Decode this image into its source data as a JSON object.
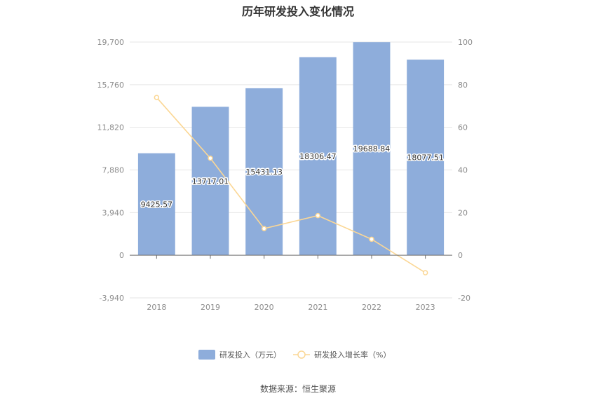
{
  "chart_data": {
    "type": "bar",
    "title": "历年研发投入变化情况",
    "categories": [
      "2018",
      "2019",
      "2020",
      "2021",
      "2022",
      "2023"
    ],
    "series": [
      {
        "name": "研发投入（万元）",
        "type": "bar",
        "axis": "left",
        "color": "#8eaddb",
        "values": [
          9425.57,
          13717.01,
          15431.13,
          18306.47,
          19688.84,
          18077.51
        ],
        "labels": [
          "9425.57",
          "13717.01",
          "15431.13",
          "18306.47",
          "19688.84",
          "18077.51"
        ]
      },
      {
        "name": "研发投入增长率（%）",
        "type": "line",
        "axis": "right",
        "color": "#fbd795",
        "values": [
          74.0,
          45.5,
          12.5,
          18.6,
          7.5,
          -8.2
        ]
      }
    ],
    "y_left": {
      "ylim": [
        -3940,
        19700
      ],
      "ticks": [
        -3940,
        0,
        3940,
        7880,
        11820,
        15760,
        19700
      ],
      "tick_labels": [
        "-3,940",
        "0",
        "3,940",
        "7,880",
        "11,820",
        "15,760",
        "19,700"
      ]
    },
    "y_right": {
      "ylim": [
        -20,
        100
      ],
      "ticks": [
        -20,
        0,
        20,
        40,
        60,
        80,
        100
      ],
      "tick_labels": [
        "-20",
        "0",
        "20",
        "40",
        "60",
        "80",
        "100"
      ]
    },
    "grid": true,
    "legend": "bottom",
    "source": "数据来源：恒生聚源"
  }
}
